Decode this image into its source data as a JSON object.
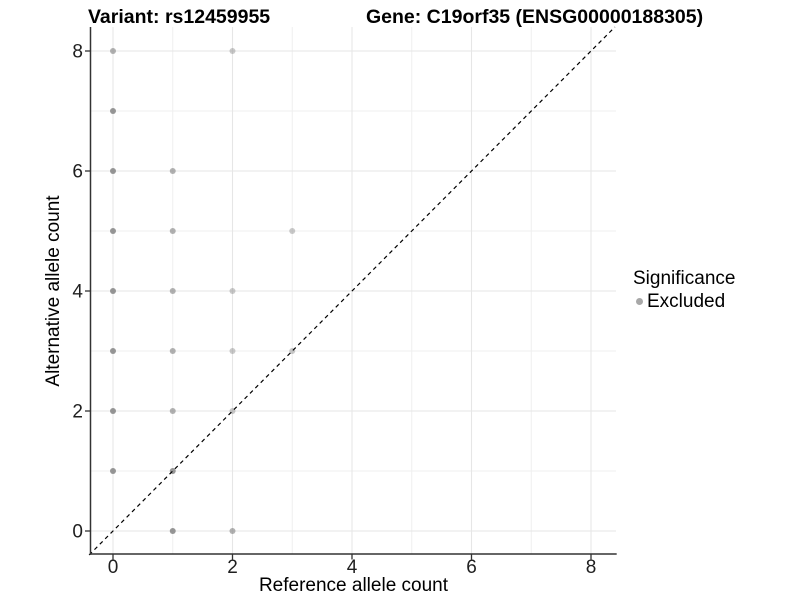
{
  "chart_data": {
    "type": "scatter",
    "title_left": "Variant: rs12459955",
    "title_right": "Gene: C19orf35 (ENSG00000188305)",
    "xlabel": "Reference allele count",
    "ylabel": "Alternative allele count",
    "xlim": [
      -0.4,
      8.4
    ],
    "ylim": [
      -0.4,
      8.4
    ],
    "x_ticks": [
      0,
      2,
      4,
      6,
      8
    ],
    "y_ticks": [
      0,
      2,
      4,
      6,
      8
    ],
    "x_minor_gridlines": [
      1,
      3,
      5,
      7
    ],
    "y_minor_gridlines": [
      1,
      3,
      5,
      7
    ],
    "grid": true,
    "legend": {
      "title": "Significance",
      "position": "right",
      "entries": [
        {
          "label": "Excluded",
          "color": "#a8a8a8"
        }
      ]
    },
    "identity_line": {
      "style": "dashed",
      "color": "#000000",
      "from": [
        -0.4,
        -0.4
      ],
      "to": [
        8.4,
        8.4
      ]
    },
    "series": [
      {
        "name": "Excluded",
        "marker_color": "#7a7a7a",
        "points": [
          {
            "x": 0,
            "y": 8,
            "opacity": 0.58
          },
          {
            "x": 2,
            "y": 8,
            "opacity": 0.4
          },
          {
            "x": 0,
            "y": 7,
            "opacity": 0.78
          },
          {
            "x": 0,
            "y": 6,
            "opacity": 0.78
          },
          {
            "x": 1,
            "y": 6,
            "opacity": 0.58
          },
          {
            "x": 0,
            "y": 5,
            "opacity": 0.78
          },
          {
            "x": 1,
            "y": 5,
            "opacity": 0.58
          },
          {
            "x": 3,
            "y": 5,
            "opacity": 0.4
          },
          {
            "x": 0,
            "y": 4,
            "opacity": 0.78
          },
          {
            "x": 1,
            "y": 4,
            "opacity": 0.58
          },
          {
            "x": 2,
            "y": 4,
            "opacity": 0.4
          },
          {
            "x": 0,
            "y": 3,
            "opacity": 0.78
          },
          {
            "x": 1,
            "y": 3,
            "opacity": 0.58
          },
          {
            "x": 2,
            "y": 3,
            "opacity": 0.4
          },
          {
            "x": 3,
            "y": 3,
            "opacity": 0.4
          },
          {
            "x": 0,
            "y": 2,
            "opacity": 0.78
          },
          {
            "x": 1,
            "y": 2,
            "opacity": 0.58
          },
          {
            "x": 2,
            "y": 2,
            "opacity": 0.4
          },
          {
            "x": 0,
            "y": 1,
            "opacity": 0.78
          },
          {
            "x": 1,
            "y": 1,
            "opacity": 0.78
          },
          {
            "x": 1,
            "y": 0,
            "opacity": 0.78
          },
          {
            "x": 2,
            "y": 0,
            "opacity": 0.58
          }
        ]
      }
    ],
    "style": {
      "background": "#ffffff",
      "grid_major": "#e6e6e6",
      "grid_minor": "#efefef",
      "axis_line": "#333333",
      "tick_mark": "#333333",
      "tick_label": "#1f1f1f",
      "point": "#7a7a7a",
      "identity": "#000000"
    }
  }
}
